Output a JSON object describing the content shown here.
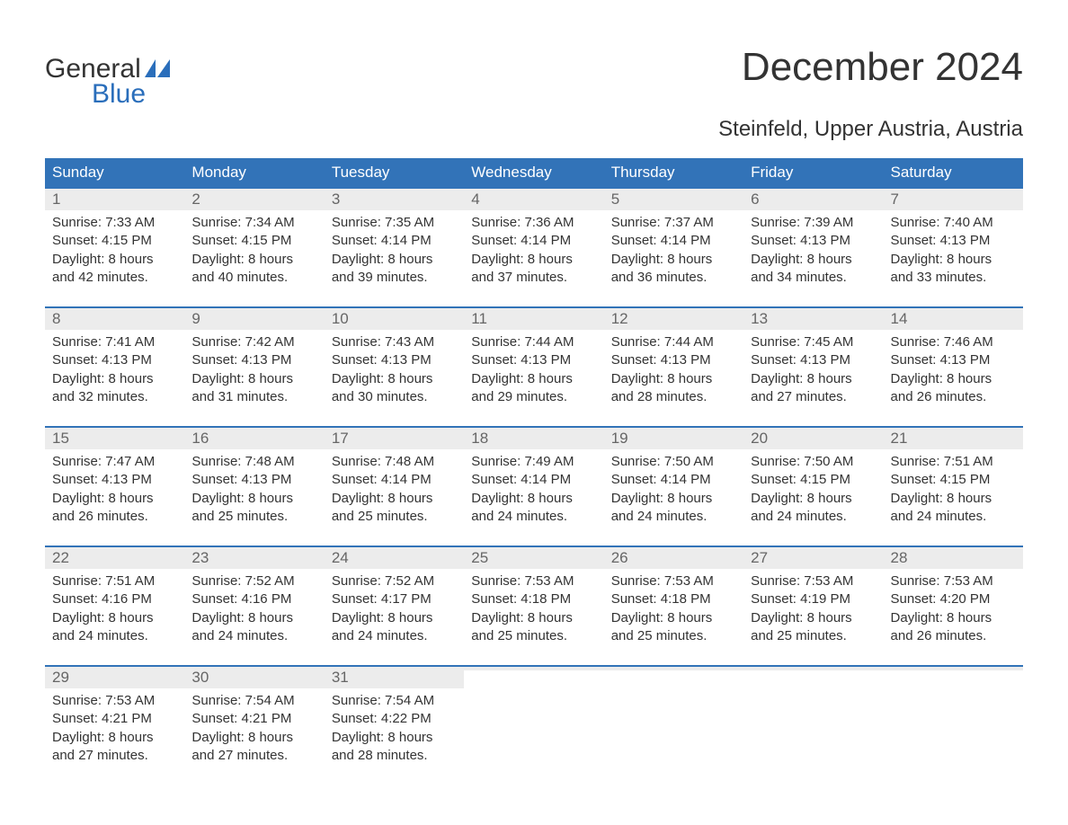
{
  "logo": {
    "word1": "General",
    "word2": "Blue"
  },
  "title": "December 2024",
  "subtitle": "Steinfeld, Upper Austria, Austria",
  "colors": {
    "header_bg": "#3273b8",
    "header_text": "#ffffff",
    "daynum_bg": "#ececec",
    "daynum_text": "#666666",
    "body_text": "#333333",
    "logo_blue": "#2a6ebb",
    "week_border": "#3273b8",
    "page_bg": "#ffffff"
  },
  "typography": {
    "title_size_pt": 33,
    "subtitle_size_pt": 18,
    "header_size_pt": 13,
    "daynum_size_pt": 13,
    "body_size_pt": 11
  },
  "day_headers": [
    "Sunday",
    "Monday",
    "Tuesday",
    "Wednesday",
    "Thursday",
    "Friday",
    "Saturday"
  ],
  "weeks": [
    [
      {
        "num": "1",
        "sunrise": "Sunrise: 7:33 AM",
        "sunset": "Sunset: 4:15 PM",
        "daylight1": "Daylight: 8 hours",
        "daylight2": "and 42 minutes."
      },
      {
        "num": "2",
        "sunrise": "Sunrise: 7:34 AM",
        "sunset": "Sunset: 4:15 PM",
        "daylight1": "Daylight: 8 hours",
        "daylight2": "and 40 minutes."
      },
      {
        "num": "3",
        "sunrise": "Sunrise: 7:35 AM",
        "sunset": "Sunset: 4:14 PM",
        "daylight1": "Daylight: 8 hours",
        "daylight2": "and 39 minutes."
      },
      {
        "num": "4",
        "sunrise": "Sunrise: 7:36 AM",
        "sunset": "Sunset: 4:14 PM",
        "daylight1": "Daylight: 8 hours",
        "daylight2": "and 37 minutes."
      },
      {
        "num": "5",
        "sunrise": "Sunrise: 7:37 AM",
        "sunset": "Sunset: 4:14 PM",
        "daylight1": "Daylight: 8 hours",
        "daylight2": "and 36 minutes."
      },
      {
        "num": "6",
        "sunrise": "Sunrise: 7:39 AM",
        "sunset": "Sunset: 4:13 PM",
        "daylight1": "Daylight: 8 hours",
        "daylight2": "and 34 minutes."
      },
      {
        "num": "7",
        "sunrise": "Sunrise: 7:40 AM",
        "sunset": "Sunset: 4:13 PM",
        "daylight1": "Daylight: 8 hours",
        "daylight2": "and 33 minutes."
      }
    ],
    [
      {
        "num": "8",
        "sunrise": "Sunrise: 7:41 AM",
        "sunset": "Sunset: 4:13 PM",
        "daylight1": "Daylight: 8 hours",
        "daylight2": "and 32 minutes."
      },
      {
        "num": "9",
        "sunrise": "Sunrise: 7:42 AM",
        "sunset": "Sunset: 4:13 PM",
        "daylight1": "Daylight: 8 hours",
        "daylight2": "and 31 minutes."
      },
      {
        "num": "10",
        "sunrise": "Sunrise: 7:43 AM",
        "sunset": "Sunset: 4:13 PM",
        "daylight1": "Daylight: 8 hours",
        "daylight2": "and 30 minutes."
      },
      {
        "num": "11",
        "sunrise": "Sunrise: 7:44 AM",
        "sunset": "Sunset: 4:13 PM",
        "daylight1": "Daylight: 8 hours",
        "daylight2": "and 29 minutes."
      },
      {
        "num": "12",
        "sunrise": "Sunrise: 7:44 AM",
        "sunset": "Sunset: 4:13 PM",
        "daylight1": "Daylight: 8 hours",
        "daylight2": "and 28 minutes."
      },
      {
        "num": "13",
        "sunrise": "Sunrise: 7:45 AM",
        "sunset": "Sunset: 4:13 PM",
        "daylight1": "Daylight: 8 hours",
        "daylight2": "and 27 minutes."
      },
      {
        "num": "14",
        "sunrise": "Sunrise: 7:46 AM",
        "sunset": "Sunset: 4:13 PM",
        "daylight1": "Daylight: 8 hours",
        "daylight2": "and 26 minutes."
      }
    ],
    [
      {
        "num": "15",
        "sunrise": "Sunrise: 7:47 AM",
        "sunset": "Sunset: 4:13 PM",
        "daylight1": "Daylight: 8 hours",
        "daylight2": "and 26 minutes."
      },
      {
        "num": "16",
        "sunrise": "Sunrise: 7:48 AM",
        "sunset": "Sunset: 4:13 PM",
        "daylight1": "Daylight: 8 hours",
        "daylight2": "and 25 minutes."
      },
      {
        "num": "17",
        "sunrise": "Sunrise: 7:48 AM",
        "sunset": "Sunset: 4:14 PM",
        "daylight1": "Daylight: 8 hours",
        "daylight2": "and 25 minutes."
      },
      {
        "num": "18",
        "sunrise": "Sunrise: 7:49 AM",
        "sunset": "Sunset: 4:14 PM",
        "daylight1": "Daylight: 8 hours",
        "daylight2": "and 24 minutes."
      },
      {
        "num": "19",
        "sunrise": "Sunrise: 7:50 AM",
        "sunset": "Sunset: 4:14 PM",
        "daylight1": "Daylight: 8 hours",
        "daylight2": "and 24 minutes."
      },
      {
        "num": "20",
        "sunrise": "Sunrise: 7:50 AM",
        "sunset": "Sunset: 4:15 PM",
        "daylight1": "Daylight: 8 hours",
        "daylight2": "and 24 minutes."
      },
      {
        "num": "21",
        "sunrise": "Sunrise: 7:51 AM",
        "sunset": "Sunset: 4:15 PM",
        "daylight1": "Daylight: 8 hours",
        "daylight2": "and 24 minutes."
      }
    ],
    [
      {
        "num": "22",
        "sunrise": "Sunrise: 7:51 AM",
        "sunset": "Sunset: 4:16 PM",
        "daylight1": "Daylight: 8 hours",
        "daylight2": "and 24 minutes."
      },
      {
        "num": "23",
        "sunrise": "Sunrise: 7:52 AM",
        "sunset": "Sunset: 4:16 PM",
        "daylight1": "Daylight: 8 hours",
        "daylight2": "and 24 minutes."
      },
      {
        "num": "24",
        "sunrise": "Sunrise: 7:52 AM",
        "sunset": "Sunset: 4:17 PM",
        "daylight1": "Daylight: 8 hours",
        "daylight2": "and 24 minutes."
      },
      {
        "num": "25",
        "sunrise": "Sunrise: 7:53 AM",
        "sunset": "Sunset: 4:18 PM",
        "daylight1": "Daylight: 8 hours",
        "daylight2": "and 25 minutes."
      },
      {
        "num": "26",
        "sunrise": "Sunrise: 7:53 AM",
        "sunset": "Sunset: 4:18 PM",
        "daylight1": "Daylight: 8 hours",
        "daylight2": "and 25 minutes."
      },
      {
        "num": "27",
        "sunrise": "Sunrise: 7:53 AM",
        "sunset": "Sunset: 4:19 PM",
        "daylight1": "Daylight: 8 hours",
        "daylight2": "and 25 minutes."
      },
      {
        "num": "28",
        "sunrise": "Sunrise: 7:53 AM",
        "sunset": "Sunset: 4:20 PM",
        "daylight1": "Daylight: 8 hours",
        "daylight2": "and 26 minutes."
      }
    ],
    [
      {
        "num": "29",
        "sunrise": "Sunrise: 7:53 AM",
        "sunset": "Sunset: 4:21 PM",
        "daylight1": "Daylight: 8 hours",
        "daylight2": "and 27 minutes."
      },
      {
        "num": "30",
        "sunrise": "Sunrise: 7:54 AM",
        "sunset": "Sunset: 4:21 PM",
        "daylight1": "Daylight: 8 hours",
        "daylight2": "and 27 minutes."
      },
      {
        "num": "31",
        "sunrise": "Sunrise: 7:54 AM",
        "sunset": "Sunset: 4:22 PM",
        "daylight1": "Daylight: 8 hours",
        "daylight2": "and 28 minutes."
      },
      {
        "empty": true
      },
      {
        "empty": true
      },
      {
        "empty": true
      },
      {
        "empty": true
      }
    ]
  ]
}
